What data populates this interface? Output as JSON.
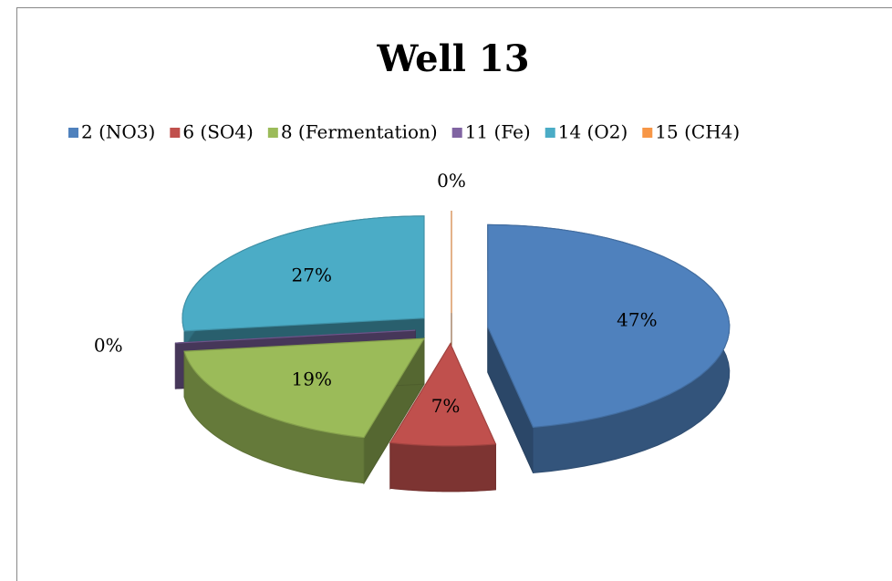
{
  "chart_data": {
    "type": "pie",
    "title": "Well 13",
    "categories": [
      "2 (NO3)",
      "6 (SO4)",
      "8 (Fermentation)",
      "11 (Fe)",
      "14 (O2)",
      "15 (CH4)"
    ],
    "values": [
      47,
      7,
      19,
      0,
      27,
      0
    ],
    "value_labels": [
      "47%",
      "7%",
      "19%",
      "0%",
      "27%",
      "0%"
    ],
    "colors": [
      "#4f81bd",
      "#c0504d",
      "#9bbb59",
      "#8064a2",
      "#4bacc6",
      "#f79646"
    ],
    "legend": "top"
  }
}
